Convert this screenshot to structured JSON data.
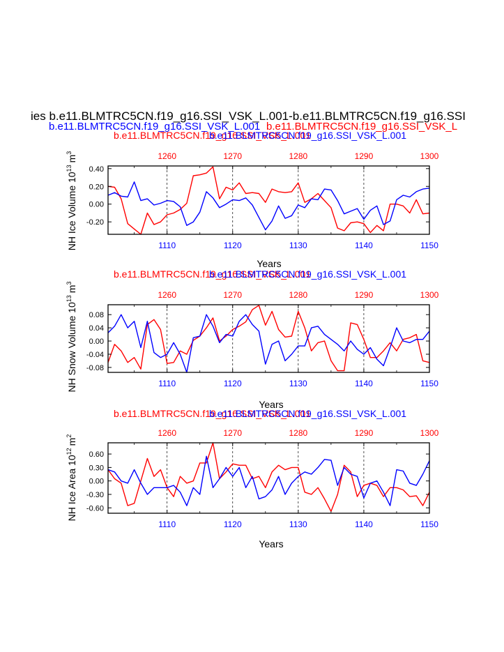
{
  "header": {
    "main_title": "ies b.e11.BLMTRC5CN.f19_g16.SSI_VSK_L.001-b.e11.BLMTRC5CN.f19_g16.SSI",
    "blue_title": "b.e11.BLMTRC5CN.f19_g16.SSI_VSK_L.001",
    "red_title": "b.e11.BLMTRC5CN.f19_g16.SSI_VSK_L",
    "colors": {
      "blue": "#0000ff",
      "red": "#ff0000",
      "black": "#000000"
    }
  },
  "chart_data": [
    {
      "type": "line",
      "panel": "ice-volume",
      "title_red": "b.e11.BLMTRC5CN.f19_g16.SSI_VSK_L.001",
      "title_blue": "b.e11.BLMTRC5CN.f19_g16.SSI_VSK_L.001",
      "ylabel_main": "NH Ice Volume 10",
      "ylabel_exp": "13",
      "ylabel_unit": "m",
      "ylabel_unit_exp": "3",
      "xlabel": "Years",
      "bottom_ticks": [
        "1110",
        "1120",
        "1130",
        "1140",
        "1150"
      ],
      "top_ticks": [
        "1260",
        "1270",
        "1280",
        "1290",
        "1300"
      ],
      "y_ticks": [
        "0.40",
        "0.20",
        "0.00",
        "-0.20"
      ],
      "y_tick_values": [
        0.4,
        0.2,
        0.0,
        -0.2
      ],
      "xlim": [
        1101,
        1150
      ],
      "ylim": [
        -0.34,
        0.43
      ],
      "series": [
        {
          "name": "red",
          "color": "#ff0000",
          "values": [
            0.2,
            0.19,
            0.06,
            -0.22,
            -0.28,
            -0.34,
            -0.1,
            -0.23,
            -0.2,
            -0.12,
            -0.1,
            -0.06,
            0.01,
            0.32,
            0.33,
            0.35,
            0.42,
            0.06,
            0.19,
            0.16,
            0.24,
            0.12,
            0.13,
            0.12,
            0.02,
            0.17,
            0.14,
            0.13,
            0.14,
            0.24,
            0.02,
            0.06,
            0.12,
            0.04,
            -0.04,
            -0.27,
            -0.3,
            -0.21,
            -0.2,
            -0.22,
            -0.32,
            -0.24,
            -0.3,
            0.0,
            0.0,
            -0.02,
            -0.1,
            0.05,
            -0.11,
            -0.1
          ]
        },
        {
          "name": "blue",
          "color": "#0000ff",
          "values": [
            0.1,
            0.13,
            0.09,
            0.08,
            0.25,
            0.04,
            0.06,
            -0.01,
            0.01,
            0.04,
            0.03,
            -0.03,
            -0.24,
            -0.2,
            -0.09,
            0.14,
            0.07,
            -0.04,
            0.0,
            0.05,
            0.04,
            0.07,
            -0.01,
            -0.15,
            -0.29,
            -0.19,
            -0.02,
            -0.16,
            -0.13,
            -0.01,
            -0.04,
            0.06,
            0.05,
            0.17,
            0.16,
            0.04,
            -0.11,
            -0.08,
            -0.05,
            -0.17,
            -0.07,
            -0.02,
            -0.23,
            -0.19,
            0.05,
            0.1,
            0.08,
            0.14,
            0.17,
            0.18
          ]
        }
      ]
    },
    {
      "type": "line",
      "panel": "snow-volume",
      "title_red": "b.e11.BLMTRC5CN.f19_g16.SSI_VSK_L.001",
      "title_blue": "b.e11.BLMTRC5CN.f19_g16.SSI_VSK_L.001",
      "ylabel_main": "NH Snow Volume 10",
      "ylabel_exp": "13",
      "ylabel_unit": "m",
      "ylabel_unit_exp": "3",
      "xlabel": "Years",
      "bottom_ticks": [
        "1110",
        "1120",
        "1130",
        "1140",
        "1150"
      ],
      "top_ticks": [
        "1260",
        "1270",
        "1280",
        "1290",
        "1300"
      ],
      "y_ticks": [
        "0.08",
        "0.04",
        "0.00",
        "-0.04",
        "-0.08"
      ],
      "y_tick_values": [
        0.08,
        0.04,
        0.0,
        -0.04,
        -0.08
      ],
      "xlim": [
        1101,
        1150
      ],
      "ylim": [
        -0.095,
        0.11
      ],
      "series": [
        {
          "name": "red",
          "color": "#ff0000",
          "values": [
            -0.065,
            -0.01,
            -0.03,
            -0.065,
            -0.05,
            -0.085,
            0.05,
            0.065,
            0.035,
            -0.068,
            -0.065,
            -0.03,
            -0.04,
            0.002,
            0.015,
            0.04,
            0.07,
            0.0,
            0.015,
            0.035,
            0.045,
            0.058,
            0.095,
            0.108,
            0.048,
            0.09,
            0.035,
            0.012,
            0.015,
            0.09,
            0.04,
            -0.03,
            -0.005,
            0.0,
            -0.06,
            -0.09,
            -0.09,
            0.055,
            0.05,
            0.005,
            -0.05,
            -0.05,
            -0.03,
            -0.005,
            -0.03,
            0.005,
            0.01,
            0.02,
            -0.06,
            -0.065
          ]
        },
        {
          "name": "blue",
          "color": "#0000ff",
          "values": [
            0.025,
            0.045,
            0.08,
            0.04,
            0.06,
            -0.02,
            0.06,
            -0.035,
            -0.05,
            -0.04,
            -0.005,
            -0.04,
            -0.095,
            0.01,
            0.015,
            0.08,
            0.045,
            -0.005,
            0.02,
            0.015,
            0.06,
            0.08,
            0.05,
            0.03,
            -0.07,
            -0.01,
            0.0,
            -0.06,
            -0.04,
            -0.015,
            -0.015,
            0.04,
            0.045,
            0.02,
            0.005,
            -0.01,
            -0.03,
            0.0,
            -0.025,
            -0.04,
            -0.02,
            -0.055,
            -0.075,
            -0.02,
            0.04,
            0.0,
            -0.005,
            0.005,
            0.005,
            0.03
          ]
        }
      ]
    },
    {
      "type": "line",
      "panel": "ice-area",
      "title_red": "b.e11.BLMTRC5CN.f19_g16.SSI_VSK_L.001",
      "title_blue": "b.e11.BLMTRC5CN.f19_g16.SSI_VSK_L.001",
      "ylabel_main": "NH Ice Area 10",
      "ylabel_exp": "12",
      "ylabel_unit": "m",
      "ylabel_unit_exp": "2",
      "xlabel": "Years",
      "bottom_ticks": [
        "1110",
        "1120",
        "1130",
        "1140",
        "1150"
      ],
      "top_ticks": [
        "1260",
        "1270",
        "1280",
        "1290",
        "1300"
      ],
      "y_ticks": [
        "0.60",
        "0.30",
        "0.00",
        "-0.30",
        "-0.60"
      ],
      "y_tick_values": [
        0.6,
        0.3,
        0.0,
        -0.3,
        -0.6
      ],
      "xlim": [
        1101,
        1150
      ],
      "ylim": [
        -0.72,
        0.85
      ],
      "series": [
        {
          "name": "red",
          "color": "#ff0000",
          "values": [
            0.25,
            0.05,
            -0.05,
            -0.55,
            -0.5,
            0.0,
            0.5,
            0.1,
            0.25,
            -0.15,
            -0.35,
            0.1,
            -0.05,
            0.0,
            0.4,
            0.4,
            0.85,
            0.05,
            0.2,
            0.38,
            0.35,
            0.35,
            0.05,
            0.1,
            -0.15,
            0.2,
            0.35,
            0.25,
            0.3,
            0.3,
            -0.25,
            -0.3,
            -0.15,
            -0.4,
            -0.68,
            -0.3,
            0.35,
            0.2,
            -0.35,
            -0.1,
            -0.05,
            -0.1,
            -0.35,
            -0.15,
            -0.15,
            -0.2,
            -0.35,
            -0.33,
            -0.55,
            -0.25
          ]
        },
        {
          "name": "blue",
          "color": "#0000ff",
          "values": [
            0.25,
            0.2,
            0.0,
            -0.05,
            0.25,
            -0.05,
            -0.3,
            -0.15,
            -0.15,
            -0.15,
            -0.1,
            -0.25,
            -0.55,
            -0.15,
            -0.3,
            0.55,
            -0.15,
            0.05,
            0.3,
            0.1,
            0.3,
            -0.15,
            0.1,
            -0.4,
            -0.35,
            -0.2,
            0.1,
            -0.3,
            -0.05,
            0.1,
            0.2,
            0.15,
            0.3,
            0.48,
            0.46,
            -0.1,
            0.3,
            0.15,
            0.1,
            -0.38,
            -0.05,
            0.0,
            -0.25,
            -0.55,
            0.25,
            0.22,
            -0.05,
            -0.1,
            0.15,
            0.45
          ]
        }
      ]
    }
  ]
}
